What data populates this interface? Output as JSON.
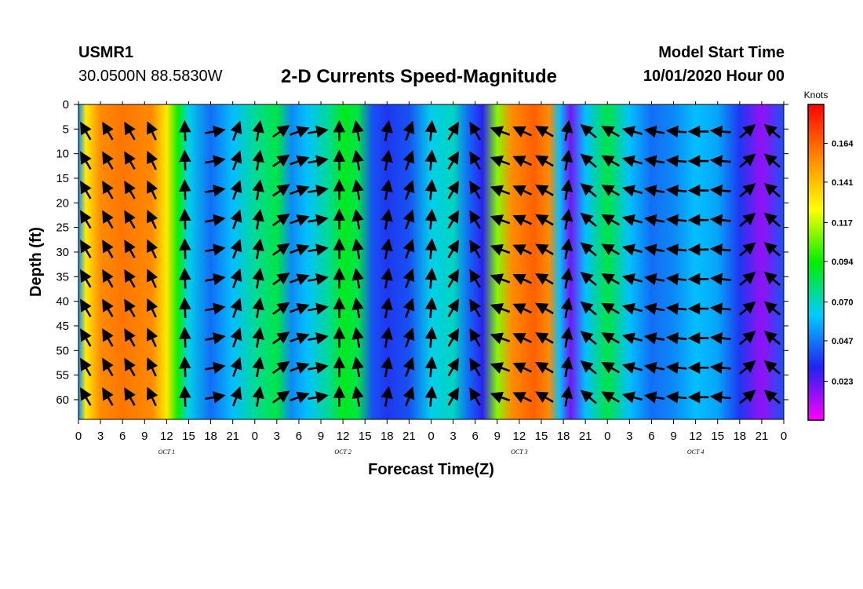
{
  "header": {
    "station_id": "USMR1",
    "coordinates": "30.0500N 88.5830W",
    "title": "2-D Currents Speed-Magnitude",
    "model_start_label": "Model Start Time",
    "model_start_value": "10/01/2020 Hour 00"
  },
  "chart_data": {
    "type": "heatmap",
    "title": "2-D Currents Speed-Magnitude",
    "xlabel": "Forecast Time(Z)",
    "ylabel": "Depth (ft)",
    "x_unit": "forecast hour",
    "xlim": [
      0,
      96
    ],
    "ylim": [
      0,
      64
    ],
    "y_inverted": true,
    "x_ticks": [
      0,
      3,
      6,
      9,
      12,
      15,
      18,
      21,
      24,
      27,
      30,
      33,
      36,
      39,
      42,
      45,
      48,
      51,
      54,
      57,
      60,
      63,
      66,
      69,
      72,
      75,
      78,
      81,
      84,
      87,
      90,
      93,
      96
    ],
    "x_tick_labels": [
      "0",
      "3",
      "6",
      "9",
      "12",
      "15",
      "18",
      "21",
      "0",
      "3",
      "6",
      "9",
      "12",
      "15",
      "18",
      "21",
      "0",
      "3",
      "6",
      "9",
      "12",
      "15",
      "18",
      "21",
      "0",
      "3",
      "6",
      "9",
      "12",
      "15",
      "18",
      "21",
      "0"
    ],
    "day_labels": [
      {
        "hour": 12,
        "label": "OCT 1"
      },
      {
        "hour": 36,
        "label": "OCT 2"
      },
      {
        "hour": 60,
        "label": "OCT 3"
      },
      {
        "hour": 84,
        "label": "OCT 4"
      }
    ],
    "y_ticks": [
      0,
      5,
      10,
      15,
      20,
      25,
      30,
      35,
      40,
      45,
      50,
      55,
      60
    ],
    "y_tick_labels": [
      "0",
      "5",
      "10",
      "15",
      "20",
      "25",
      "30",
      "35",
      "40",
      "45",
      "50",
      "55",
      "60"
    ],
    "colorbar": {
      "unit": "Knots",
      "range": [
        0,
        0.187
      ],
      "tick_values": [
        0.023,
        0.047,
        0.07,
        0.094,
        0.117,
        0.141,
        0.164
      ],
      "tick_labels": [
        "0.023",
        "0.047",
        "0.070",
        "0.094",
        "0.117",
        "0.141",
        "0.164"
      ],
      "colors": [
        "#ff00ff",
        "#2222ee",
        "#00ccff",
        "#00ee00",
        "#ffff00",
        "#ff8800",
        "#ff0000"
      ]
    },
    "speed_profile": [
      {
        "hour": 0,
        "speed": 0.05
      },
      {
        "hour": 1,
        "speed": 0.13
      },
      {
        "hour": 3,
        "speed": 0.155
      },
      {
        "hour": 6,
        "speed": 0.16
      },
      {
        "hour": 10,
        "speed": 0.155
      },
      {
        "hour": 12,
        "speed": 0.13
      },
      {
        "hour": 13.5,
        "speed": 0.095
      },
      {
        "hour": 15,
        "speed": 0.065
      },
      {
        "hour": 18,
        "speed": 0.045
      },
      {
        "hour": 21,
        "speed": 0.06
      },
      {
        "hour": 24,
        "speed": 0.075
      },
      {
        "hour": 27,
        "speed": 0.085
      },
      {
        "hour": 29,
        "speed": 0.05
      },
      {
        "hour": 31,
        "speed": 0.06
      },
      {
        "hour": 34,
        "speed": 0.075
      },
      {
        "hour": 36,
        "speed": 0.09
      },
      {
        "hour": 38,
        "speed": 0.085
      },
      {
        "hour": 40,
        "speed": 0.04
      },
      {
        "hour": 42,
        "speed": 0.035
      },
      {
        "hour": 45,
        "speed": 0.04
      },
      {
        "hour": 48,
        "speed": 0.065
      },
      {
        "hour": 51,
        "speed": 0.07
      },
      {
        "hour": 53,
        "speed": 0.045
      },
      {
        "hour": 55,
        "speed": 0.03
      },
      {
        "hour": 57,
        "speed": 0.11
      },
      {
        "hour": 59,
        "speed": 0.155
      },
      {
        "hour": 62,
        "speed": 0.165
      },
      {
        "hour": 64,
        "speed": 0.155
      },
      {
        "hour": 65.5,
        "speed": 0.06
      },
      {
        "hour": 67,
        "speed": 0.02
      },
      {
        "hour": 69,
        "speed": 0.06
      },
      {
        "hour": 72,
        "speed": 0.085
      },
      {
        "hour": 75,
        "speed": 0.06
      },
      {
        "hour": 78,
        "speed": 0.045
      },
      {
        "hour": 81,
        "speed": 0.05
      },
      {
        "hour": 84,
        "speed": 0.06
      },
      {
        "hour": 87,
        "speed": 0.055
      },
      {
        "hour": 90,
        "speed": 0.035
      },
      {
        "hour": 93,
        "speed": 0.015
      },
      {
        "hour": 96,
        "speed": 0.04
      }
    ],
    "current_vectors": [
      {
        "hour": 1,
        "direction_deg": 330
      },
      {
        "hour": 4,
        "direction_deg": 330
      },
      {
        "hour": 7,
        "direction_deg": 330
      },
      {
        "hour": 10,
        "direction_deg": 335
      },
      {
        "hour": 14.5,
        "direction_deg": 358
      },
      {
        "hour": 18.5,
        "direction_deg": 80
      },
      {
        "hour": 21.5,
        "direction_deg": 20
      },
      {
        "hour": 24.5,
        "direction_deg": 10
      },
      {
        "hour": 27.5,
        "direction_deg": 55
      },
      {
        "hour": 30,
        "direction_deg": 70
      },
      {
        "hour": 32.5,
        "direction_deg": 80
      },
      {
        "hour": 35.5,
        "direction_deg": 0
      },
      {
        "hour": 38,
        "direction_deg": 350
      },
      {
        "hour": 42,
        "direction_deg": 10
      },
      {
        "hour": 45,
        "direction_deg": 20
      },
      {
        "hour": 48,
        "direction_deg": 5
      },
      {
        "hour": 51,
        "direction_deg": 30
      },
      {
        "hour": 54,
        "direction_deg": 330
      },
      {
        "hour": 57.5,
        "direction_deg": 290
      },
      {
        "hour": 60.5,
        "direction_deg": 295
      },
      {
        "hour": 63.5,
        "direction_deg": 300
      },
      {
        "hour": 66.5,
        "direction_deg": 10
      },
      {
        "hour": 69.5,
        "direction_deg": 310
      },
      {
        "hour": 72.5,
        "direction_deg": 300
      },
      {
        "hour": 75.5,
        "direction_deg": 285
      },
      {
        "hour": 78.5,
        "direction_deg": 280
      },
      {
        "hour": 81.5,
        "direction_deg": 275
      },
      {
        "hour": 84.5,
        "direction_deg": 270
      },
      {
        "hour": 87.5,
        "direction_deg": 275
      },
      {
        "hour": 91,
        "direction_deg": 50
      },
      {
        "hour": 94.5,
        "direction_deg": 310
      }
    ]
  }
}
